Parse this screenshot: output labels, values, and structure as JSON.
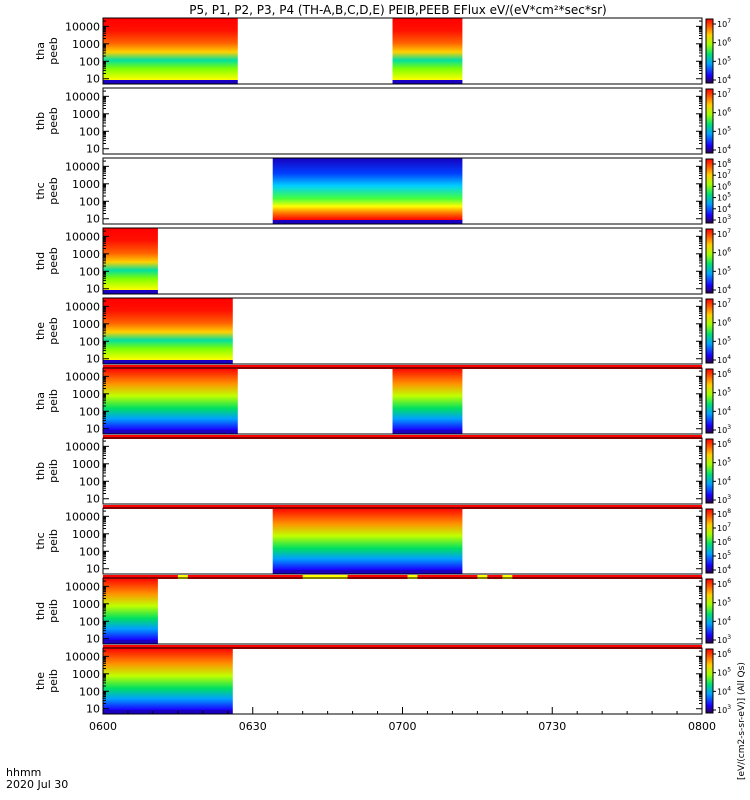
{
  "title": "P5, P1, P2, P3, P4 (TH-A,B,C,D,E) PEIB,PEEB EFlux eV/(eV*cm²*sec*sr)",
  "bottom_labels": {
    "time_unit": "hhmm",
    "date": "2020 Jul 30"
  },
  "colorbar_label": "[eV/(cm2-s-sr-eV)] (All Qs)",
  "chart_data": {
    "type": "heatmap",
    "x_axis": {
      "ticks": [
        "0600",
        "0630",
        "0700",
        "0730",
        "0800"
      ],
      "range_hhmm": [
        "0600",
        "0800"
      ]
    },
    "y_axis": {
      "scale": "log",
      "range": [
        5,
        30000
      ],
      "ticks": [
        "10",
        "100",
        "1000",
        "10000"
      ],
      "unit": "eV"
    },
    "panels": [
      {
        "label": "tha\npeeb",
        "min_exp": 4,
        "max_exp": 7,
        "intervals": [
          [
            "0600",
            "0627"
          ],
          [
            "0658",
            "0712"
          ]
        ],
        "bar_below": false
      },
      {
        "label": "thb\npeeb",
        "min_exp": 4,
        "max_exp": 7,
        "intervals": [],
        "bar_below": false
      },
      {
        "label": "thc\npeeb",
        "min_exp": 3,
        "max_exp": 8,
        "intervals": [
          [
            "0634",
            "0712"
          ]
        ],
        "bar_below": false
      },
      {
        "label": "thd\npeeb",
        "min_exp": 4,
        "max_exp": 7,
        "intervals": [
          [
            "0600",
            "0611"
          ]
        ],
        "bar_below": false
      },
      {
        "label": "the\npeeb",
        "min_exp": 4,
        "max_exp": 7,
        "intervals": [
          [
            "0600",
            "0626"
          ]
        ],
        "bar_below": true
      },
      {
        "label": "tha\npeib",
        "min_exp": 3,
        "max_exp": 6,
        "intervals": [
          [
            "0600",
            "0627"
          ],
          [
            "0658",
            "0712"
          ]
        ],
        "bar_below": true
      },
      {
        "label": "thb\npeib",
        "min_exp": 3,
        "max_exp": 6,
        "intervals": [],
        "bar_below": true
      },
      {
        "label": "thc\npeib",
        "min_exp": 4,
        "max_exp": 8,
        "intervals": [
          [
            "0634",
            "0712"
          ]
        ],
        "bar_below": true
      },
      {
        "label": "thd\npeib",
        "min_exp": 3,
        "max_exp": 6,
        "intervals": [
          [
            "0600",
            "0611"
          ]
        ],
        "bar_below": true
      },
      {
        "label": "the\npeib",
        "min_exp": 3,
        "max_exp": 6,
        "intervals": [
          [
            "0600",
            "0626"
          ]
        ],
        "bar_below": false
      }
    ],
    "flag_bar_colors": {
      "base": "#ff0000",
      "mark": "#ffff00"
    },
    "flag_marks": [
      [
        "0615",
        "0617"
      ],
      [
        "0640",
        "0649"
      ],
      [
        "0701",
        "0703"
      ],
      [
        "0715",
        "0717"
      ],
      [
        "0720",
        "0722"
      ]
    ]
  }
}
